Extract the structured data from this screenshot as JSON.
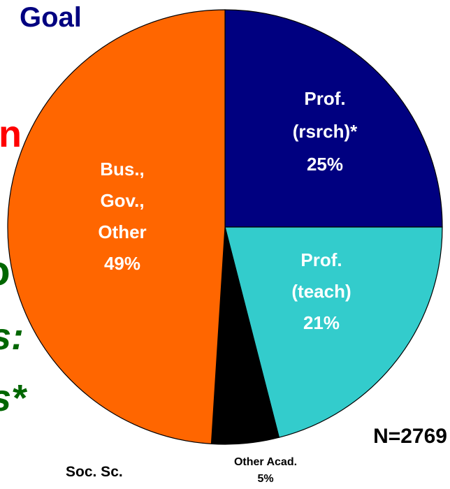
{
  "chart_data": {
    "type": "pie",
    "categories": [
      "Prof.\n(rsrch)*",
      "Prof.\n(teach)",
      "Other Acad.",
      "Bus.,\nGov.,\nOther"
    ],
    "values": [
      25,
      21,
      5,
      49
    ],
    "value_labels": [
      "25%",
      "21%",
      "5%",
      "49%"
    ],
    "colors": [
      "#000080",
      "#33cccc",
      "#000000",
      "#ff6600"
    ],
    "annotations": [
      "Goal",
      "n",
      "o",
      "s:",
      "s*",
      "Soc. Sc.",
      "N=2769"
    ]
  }
}
